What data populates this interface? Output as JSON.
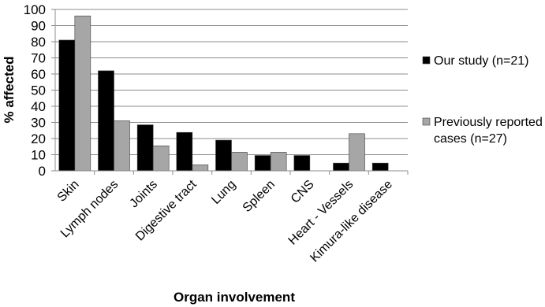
{
  "chart_data": {
    "type": "bar",
    "xlabel": "Organ involvement",
    "ylabel": "% affected",
    "ylim": [
      0,
      100
    ],
    "yticks": [
      0,
      10,
      20,
      30,
      40,
      50,
      60,
      70,
      80,
      90,
      100
    ],
    "grid": "horizontal",
    "legend": "right",
    "categories": [
      "Skin",
      "Lymph nodes",
      "Joints",
      "Digestive tract",
      "Lung",
      "Spleen",
      "CNS",
      "Heart - Vessels",
      "Kimura-like disease"
    ],
    "series": [
      {
        "name": "Our study (n=21)",
        "color": "#000000",
        "values": [
          81,
          62,
          28.5,
          23.8,
          19,
          9.5,
          9.5,
          4.8,
          4.8
        ]
      },
      {
        "name": "Previously reported cases (n=27)",
        "legend_lines": [
          "Previously reported",
          "cases (n=27)"
        ],
        "color": "#a6a6a6",
        "values": [
          96,
          31,
          15.5,
          3.7,
          11.5,
          11.5,
          0,
          23,
          0
        ]
      }
    ]
  }
}
